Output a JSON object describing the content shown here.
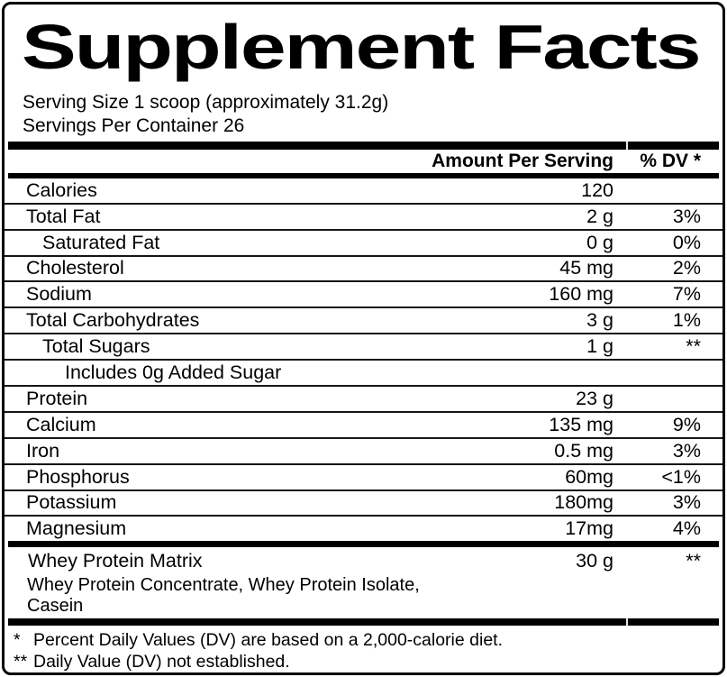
{
  "label": {
    "title": "Supplement Facts",
    "serving": {
      "size_line": "Serving Size 1 scoop (approximately 31.2g)",
      "per_container_line": "Servings Per Container 26"
    },
    "columns": {
      "amount": "Amount Per Serving",
      "dv": "% DV *"
    },
    "rows": [
      {
        "name": "Calories",
        "amount": "120",
        "dv": "",
        "indent": 0
      },
      {
        "name": "Total Fat",
        "amount": "2 g",
        "dv": "3%",
        "indent": 0
      },
      {
        "name": "Saturated Fat",
        "amount": "0 g",
        "dv": "0%",
        "indent": 1
      },
      {
        "name": "Cholesterol",
        "amount": "45 mg",
        "dv": "2%",
        "indent": 0
      },
      {
        "name": "Sodium",
        "amount": "160 mg",
        "dv": "7%",
        "indent": 0
      },
      {
        "name": "Total Carbohydrates",
        "amount": "3 g",
        "dv": "1%",
        "indent": 0
      },
      {
        "name": "Total Sugars",
        "amount": "1 g",
        "dv": "**",
        "indent": 1
      },
      {
        "name": "Includes 0g Added Sugar",
        "amount": "",
        "dv": "",
        "indent": 2
      },
      {
        "name": "Protein",
        "amount": "23 g",
        "dv": "",
        "indent": 0
      },
      {
        "name": "Calcium",
        "amount": "135 mg",
        "dv": "9%",
        "indent": 0
      },
      {
        "name": "Iron",
        "amount": "0.5 mg",
        "dv": "3%",
        "indent": 0
      },
      {
        "name": "Phosphorus",
        "amount": "60mg",
        "dv": "<1%",
        "indent": 0
      },
      {
        "name": "Potassium",
        "amount": "180mg",
        "dv": "3%",
        "indent": 0
      },
      {
        "name": "Magnesium",
        "amount": "17mg",
        "dv": "4%",
        "indent": 0
      }
    ],
    "matrix": {
      "name": "Whey Protein Matrix",
      "amount": "30 g",
      "dv": "**",
      "ingredients_line1": "Whey Protein Concentrate, Whey Protein Isolate,",
      "ingredients_line2": "Casein"
    },
    "footnotes": [
      {
        "marker": "*",
        "text": "Percent Daily Values (DV) are based on a 2,000-calorie diet."
      },
      {
        "marker": "**",
        "text": "Daily Value (DV) not established."
      }
    ],
    "colors": {
      "ink": "#000000",
      "background": "#ffffff"
    }
  }
}
